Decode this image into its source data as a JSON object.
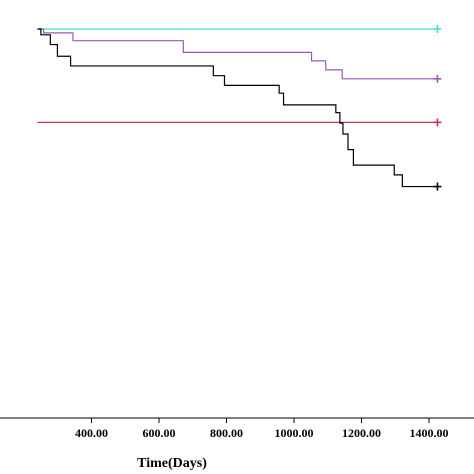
{
  "chart_data": {
    "type": "line",
    "step": true,
    "xlabel": "Time(Days)",
    "ylabel": "",
    "xlim": [
      240,
      1475
    ],
    "ylim": [
      0,
      1.01
    ],
    "xticks": [
      400,
      600,
      800,
      1000,
      1200,
      1400
    ],
    "xtick_labels": [
      "400.00",
      "600.00",
      "800.00",
      "1000.00",
      "1200.00",
      "1400.00"
    ],
    "grid": false,
    "series": [
      {
        "color": "#40e0d0",
        "censor_marker": "+",
        "points": [
          [
            240,
            1.0
          ],
          [
            1425,
            1.0
          ]
        ]
      },
      {
        "color": "#9b59b6",
        "censor_marker": "+",
        "points": [
          [
            240,
            1.0
          ],
          [
            258,
            0.99
          ],
          [
            345,
            0.97
          ],
          [
            672,
            0.94
          ],
          [
            1052,
            0.918
          ],
          [
            1094,
            0.895
          ],
          [
            1143,
            0.872
          ],
          [
            1425,
            0.872
          ]
        ]
      },
      {
        "color": "#c8364a",
        "censor_marker": "+",
        "points": [
          [
            240,
            0.76
          ],
          [
            1425,
            0.76
          ]
        ]
      },
      {
        "color": "#000000",
        "censor_marker": "+",
        "points": [
          [
            240,
            1.0
          ],
          [
            250,
            0.985
          ],
          [
            278,
            0.96
          ],
          [
            299,
            0.93
          ],
          [
            338,
            0.905
          ],
          [
            761,
            0.88
          ],
          [
            794,
            0.855
          ],
          [
            956,
            0.835
          ],
          [
            969,
            0.805
          ],
          [
            1124,
            0.785
          ],
          [
            1136,
            0.758
          ],
          [
            1145,
            0.73
          ],
          [
            1160,
            0.69
          ],
          [
            1176,
            0.65
          ],
          [
            1297,
            0.625
          ],
          [
            1321,
            0.595
          ],
          [
            1425,
            0.595
          ]
        ]
      }
    ]
  }
}
